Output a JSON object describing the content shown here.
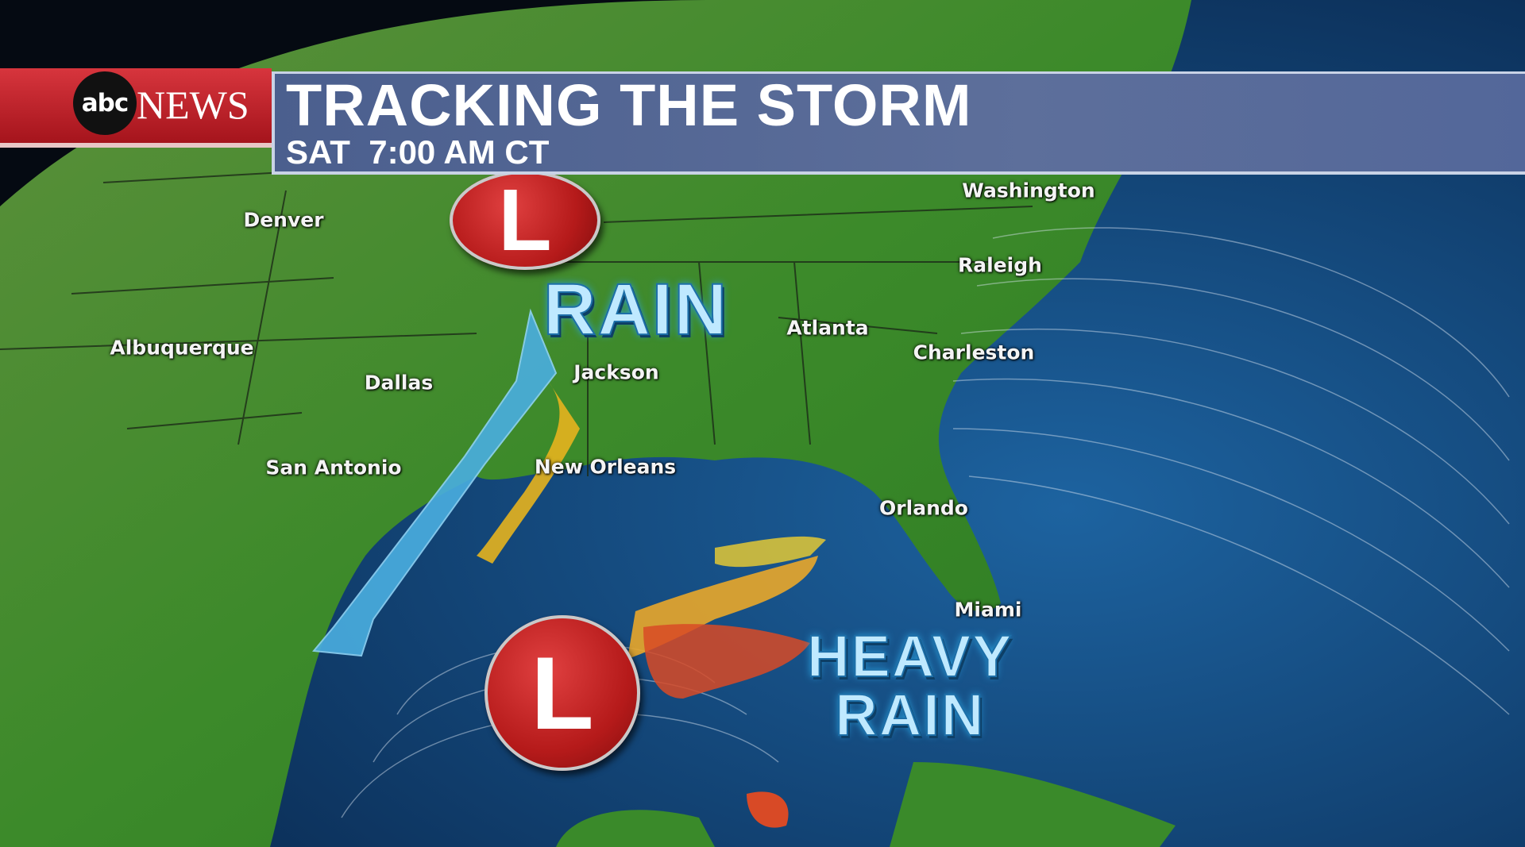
{
  "header": {
    "brand": "abc",
    "brand_news": "NEWS",
    "title": "TRACKING THE STORM",
    "subtitle": "SAT  7:00 AM CT"
  },
  "cities": [
    {
      "name": "Washington"
    },
    {
      "name": "Denver"
    },
    {
      "name": "Raleigh"
    },
    {
      "name": "Atlanta"
    },
    {
      "name": "Charleston"
    },
    {
      "name": "Albuquerque"
    },
    {
      "name": "Dallas"
    },
    {
      "name": "Jackson"
    },
    {
      "name": "San Antonio"
    },
    {
      "name": "New Orleans"
    },
    {
      "name": "Orlando"
    },
    {
      "name": "Miami"
    }
  ],
  "labels": {
    "rain": "RAIN",
    "heavy": "HEAVY",
    "heavy_rain": "RAIN"
  },
  "lows": [
    {
      "symbol": "L"
    },
    {
      "symbol": "L"
    }
  ],
  "colors": {
    "land": "#3f8a2c",
    "ocean": "#154f86",
    "low": "#c41e24",
    "front": "#4aaee0",
    "banner_red": "#c0242c",
    "banner_blue": "#56699a"
  }
}
